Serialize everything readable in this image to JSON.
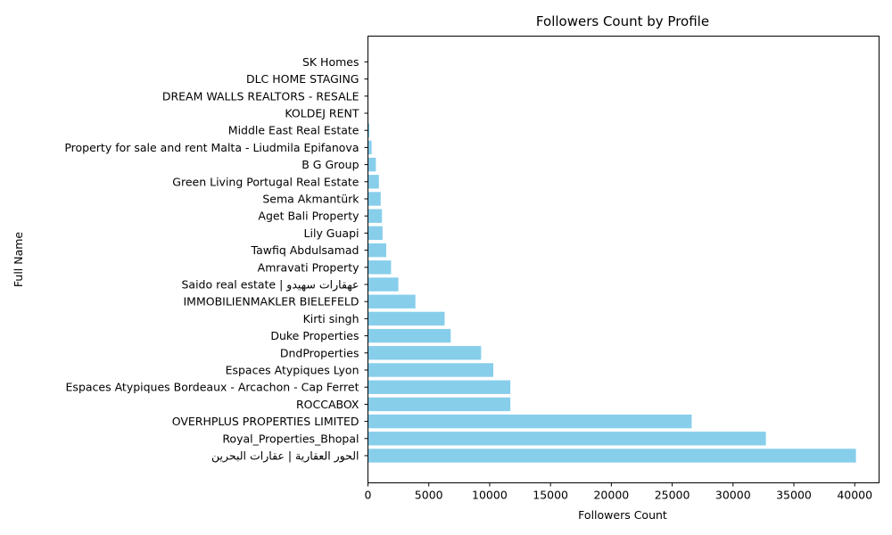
{
  "chart_data": {
    "type": "bar",
    "orientation": "horizontal",
    "title": "Followers Count by Profile",
    "xlabel": "Followers Count",
    "ylabel": "Full Name",
    "xlim": [
      0,
      42000
    ],
    "xticks": [
      0,
      5000,
      10000,
      15000,
      20000,
      25000,
      30000,
      35000,
      40000
    ],
    "grid": false,
    "bar_color": "#87CEEB",
    "categories": [
      "الحور العقارية | عقارات البحرين",
      "Royal_Properties_Bhopal",
      "OVERHPLUS PROPERTIES LIMITED",
      "ROCCABOX",
      "Espaces Atypiques Bordeaux - Arcachon - Cap Ferret",
      "Espaces Atypiques Lyon",
      "DndProperties",
      "Duke Properties",
      "Kirti singh",
      "IMMOBILIENMAKLER BIELEFELD",
      "Saido real estate | عهقارات سهيدو",
      "Amravati Property",
      "Tawfiq Abdulsamad",
      "Lily Guapi",
      "Aget Bali Property",
      "Sema Akmantürk",
      "Green Living Portugal Real Estate",
      "B G Group",
      "Property for sale and rent Malta - Liudmila Epifanova",
      "Middle East Real Estate",
      "KOLDEJ RENT",
      "DREAM WALLS REALTORS - RESALE",
      "DLC HOME STAGING",
      "SK Homes"
    ],
    "values": [
      40100,
      32700,
      26600,
      11700,
      11700,
      10300,
      9300,
      6800,
      6300,
      3900,
      2500,
      1900,
      1500,
      1200,
      1150,
      1050,
      900,
      650,
      300,
      120,
      40,
      20,
      10,
      5
    ]
  }
}
